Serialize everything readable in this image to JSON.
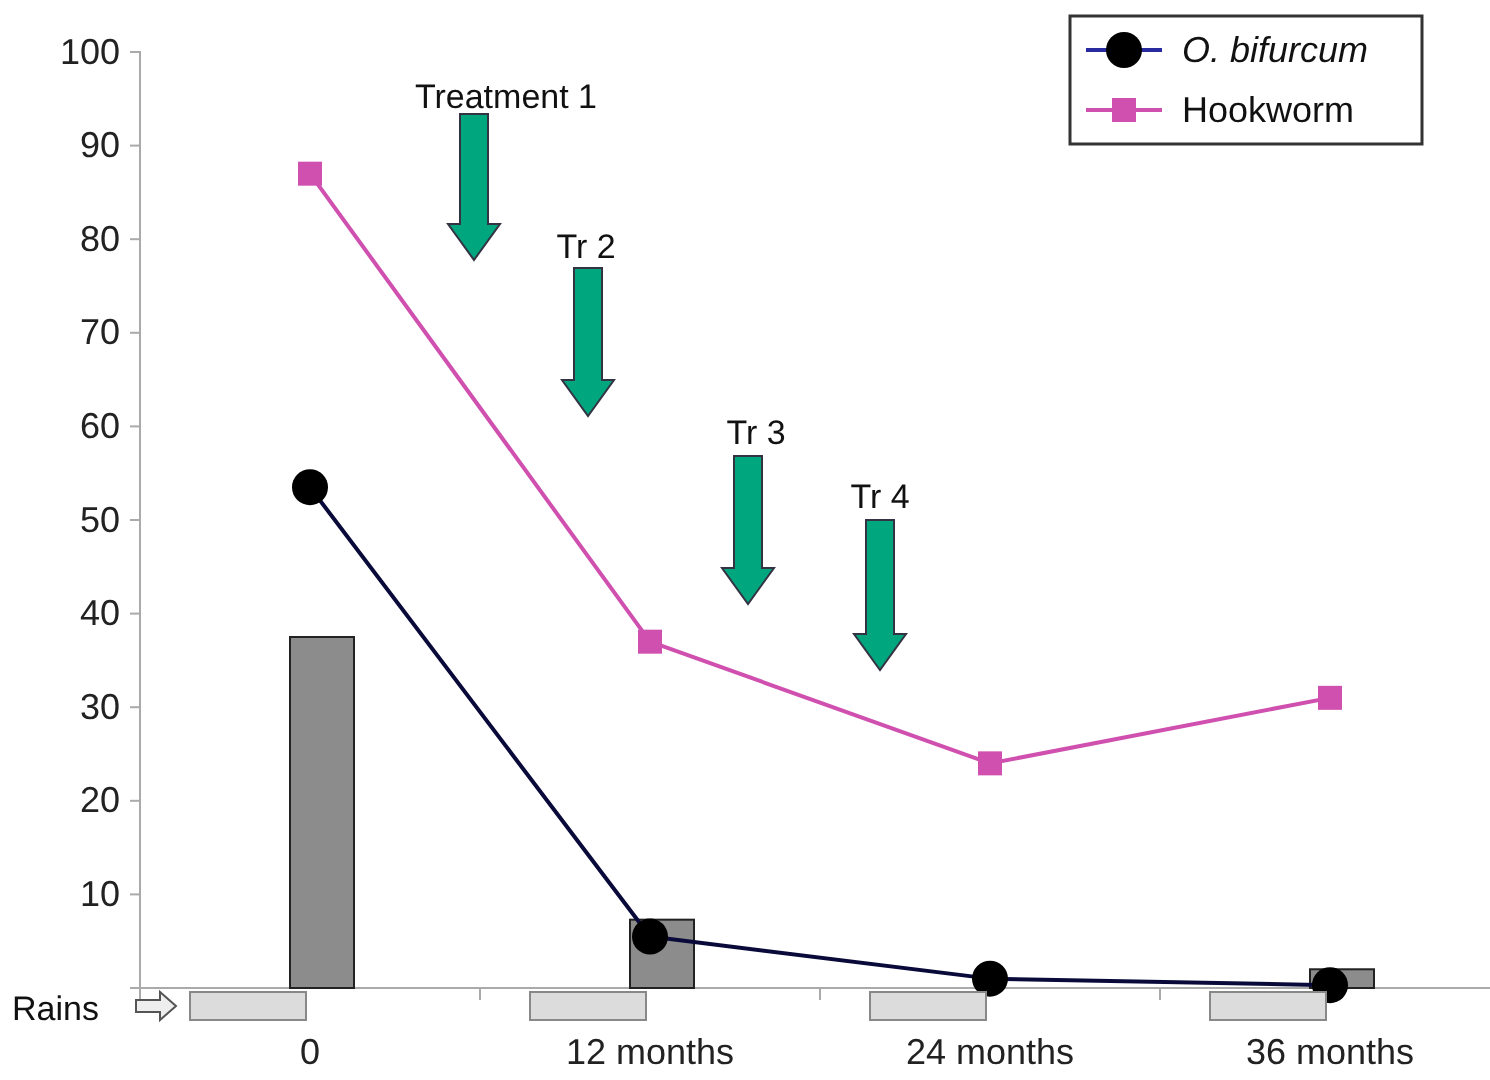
{
  "chart_data": {
    "type": "line",
    "categories": [
      "0",
      "12 months",
      "24 months",
      "36 months"
    ],
    "series": [
      {
        "type": "bar",
        "color": "#8c8c8c",
        "values": [
          37.5,
          7.3,
          0,
          2
        ]
      },
      {
        "name": "O. bifurcum",
        "color": "#0a0a3a",
        "marker": "circle",
        "values": [
          53.5,
          5.5,
          1,
          0.3
        ]
      },
      {
        "name": "Hookworm",
        "color": "#d050b0",
        "marker": "square",
        "values": [
          87,
          37,
          24,
          31
        ]
      }
    ],
    "ylim": [
      0,
      100
    ],
    "yticks": [
      {
        "value": 0,
        "label": null
      },
      10,
      20,
      30,
      40,
      50,
      60,
      70,
      80,
      90,
      100
    ],
    "legend": "top right",
    "grid": false,
    "annotations": [
      "Treatment 1",
      "Tr 2",
      "Tr 3",
      "Tr 4",
      "Rains"
    ]
  }
}
